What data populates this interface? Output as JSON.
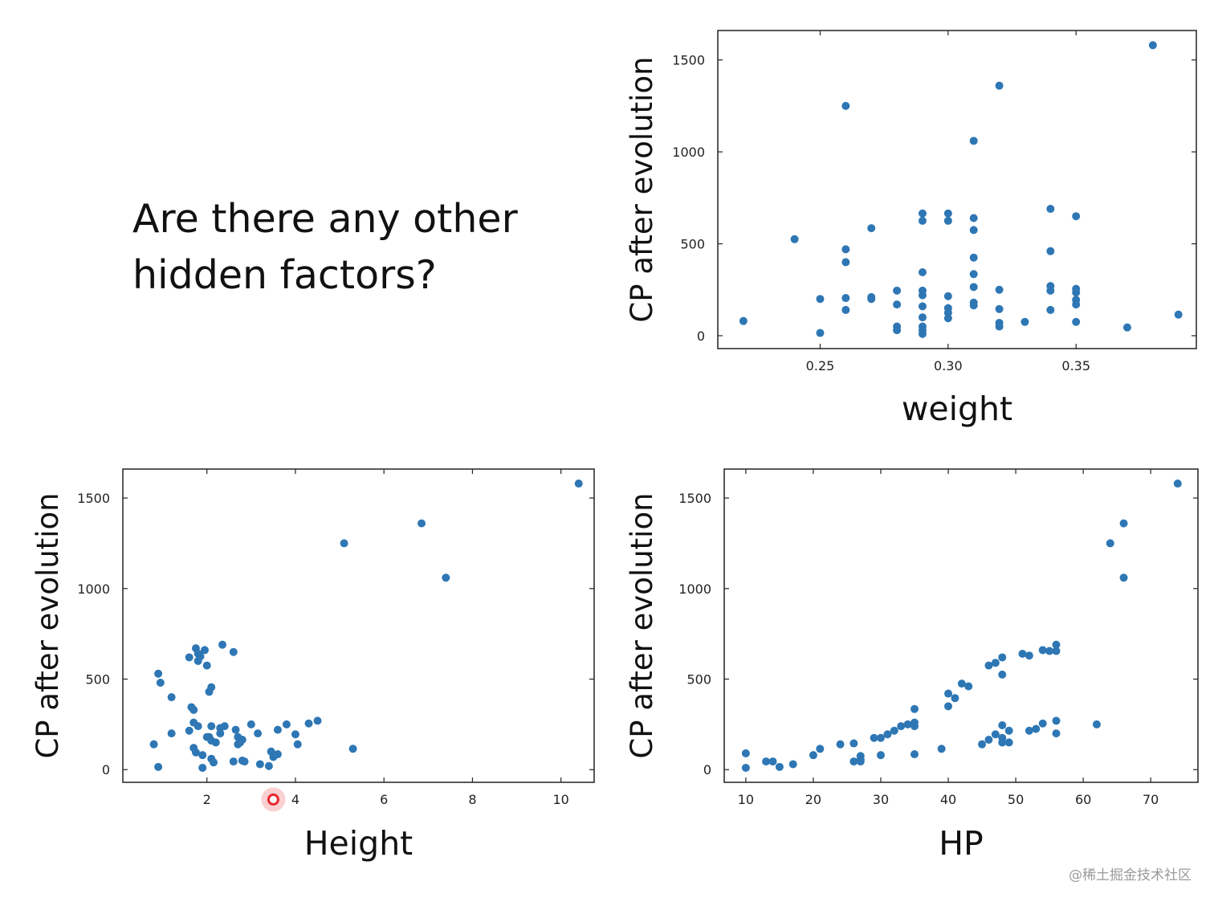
{
  "slide": {
    "heading_line1": "Are there any other",
    "heading_line2": "hidden factors?",
    "watermark": "@稀土掘金技术社区"
  },
  "colors": {
    "point": "#2e77b4",
    "highlight": "#e8282e",
    "axis": "#222222"
  },
  "chart_data": [
    {
      "id": "weight",
      "type": "scatter",
      "xlabel": "weight",
      "ylabel": "CP after evolution",
      "xlim": [
        0.21,
        0.397
      ],
      "ylim": [
        -70,
        1660
      ],
      "xticks": [
        {
          "value": 0.25,
          "label": "0.25"
        },
        {
          "value": 0.3,
          "label": "0.30"
        },
        {
          "value": 0.35,
          "label": "0.35"
        }
      ],
      "yticks": [
        {
          "value": 0,
          "label": "0"
        },
        {
          "value": 500,
          "label": "500"
        },
        {
          "value": 1000,
          "label": "1000"
        },
        {
          "value": 1500,
          "label": "1500"
        }
      ],
      "points": [
        [
          0.22,
          80
        ],
        [
          0.24,
          525
        ],
        [
          0.25,
          200
        ],
        [
          0.25,
          15
        ],
        [
          0.26,
          1250
        ],
        [
          0.26,
          470
        ],
        [
          0.26,
          400
        ],
        [
          0.26,
          205
        ],
        [
          0.26,
          140
        ],
        [
          0.27,
          585
        ],
        [
          0.27,
          210
        ],
        [
          0.27,
          200
        ],
        [
          0.28,
          245
        ],
        [
          0.28,
          170
        ],
        [
          0.28,
          50
        ],
        [
          0.28,
          30
        ],
        [
          0.29,
          665
        ],
        [
          0.29,
          625
        ],
        [
          0.29,
          345
        ],
        [
          0.29,
          245
        ],
        [
          0.29,
          220
        ],
        [
          0.29,
          160
        ],
        [
          0.29,
          100
        ],
        [
          0.29,
          50
        ],
        [
          0.29,
          30
        ],
        [
          0.29,
          10
        ],
        [
          0.3,
          665
        ],
        [
          0.3,
          625
        ],
        [
          0.3,
          215
        ],
        [
          0.3,
          150
        ],
        [
          0.3,
          125
        ],
        [
          0.3,
          95
        ],
        [
          0.31,
          1060
        ],
        [
          0.31,
          640
        ],
        [
          0.31,
          575
        ],
        [
          0.31,
          425
        ],
        [
          0.31,
          335
        ],
        [
          0.31,
          265
        ],
        [
          0.31,
          180
        ],
        [
          0.31,
          165
        ],
        [
          0.32,
          1360
        ],
        [
          0.32,
          250
        ],
        [
          0.32,
          145
        ],
        [
          0.32,
          70
        ],
        [
          0.32,
          50
        ],
        [
          0.33,
          75
        ],
        [
          0.34,
          690
        ],
        [
          0.34,
          460
        ],
        [
          0.34,
          270
        ],
        [
          0.34,
          245
        ],
        [
          0.34,
          140
        ],
        [
          0.35,
          650
        ],
        [
          0.35,
          255
        ],
        [
          0.35,
          235
        ],
        [
          0.35,
          195
        ],
        [
          0.35,
          170
        ],
        [
          0.35,
          75
        ],
        [
          0.37,
          45
        ],
        [
          0.38,
          1580
        ],
        [
          0.39,
          115
        ]
      ]
    },
    {
      "id": "height",
      "type": "scatter",
      "xlabel": "Height",
      "ylabel": "CP after evolution",
      "xlim": [
        0.1,
        10.75
      ],
      "ylim": [
        -70,
        1660
      ],
      "xticks": [
        {
          "value": 2,
          "label": "2"
        },
        {
          "value": 4,
          "label": "4"
        },
        {
          "value": 6,
          "label": "6"
        },
        {
          "value": 8,
          "label": "8"
        },
        {
          "value": 10,
          "label": "10"
        }
      ],
      "yticks": [
        {
          "value": 0,
          "label": "0"
        },
        {
          "value": 500,
          "label": "500"
        },
        {
          "value": 1000,
          "label": "1000"
        },
        {
          "value": 1500,
          "label": "1500"
        }
      ],
      "highlight": {
        "x": 3.5,
        "y": -165
      },
      "points": [
        [
          0.8,
          140
        ],
        [
          0.9,
          530
        ],
        [
          0.95,
          480
        ],
        [
          0.9,
          15
        ],
        [
          1.2,
          400
        ],
        [
          1.2,
          200
        ],
        [
          1.6,
          620
        ],
        [
          1.6,
          215
        ],
        [
          1.65,
          345
        ],
        [
          1.7,
          330
        ],
        [
          1.7,
          260
        ],
        [
          1.7,
          120
        ],
        [
          1.75,
          95
        ],
        [
          1.75,
          670
        ],
        [
          1.8,
          600
        ],
        [
          1.8,
          640
        ],
        [
          1.8,
          240
        ],
        [
          1.85,
          625
        ],
        [
          1.9,
          80
        ],
        [
          1.9,
          10
        ],
        [
          1.95,
          660
        ],
        [
          2.0,
          180
        ],
        [
          2.0,
          575
        ],
        [
          2.05,
          180
        ],
        [
          2.05,
          430
        ],
        [
          2.1,
          455
        ],
        [
          2.1,
          240
        ],
        [
          2.1,
          60
        ],
        [
          2.1,
          160
        ],
        [
          2.15,
          40
        ],
        [
          2.2,
          150
        ],
        [
          2.3,
          230
        ],
        [
          2.3,
          200
        ],
        [
          2.35,
          690
        ],
        [
          2.4,
          240
        ],
        [
          2.6,
          650
        ],
        [
          2.6,
          45
        ],
        [
          2.65,
          220
        ],
        [
          2.7,
          180
        ],
        [
          2.7,
          140
        ],
        [
          2.75,
          150
        ],
        [
          2.8,
          50
        ],
        [
          2.8,
          165
        ],
        [
          2.85,
          45
        ],
        [
          3.0,
          250
        ],
        [
          3.15,
          200
        ],
        [
          3.2,
          30
        ],
        [
          3.4,
          20
        ],
        [
          3.45,
          100
        ],
        [
          3.5,
          70
        ],
        [
          3.6,
          220
        ],
        [
          3.6,
          85
        ],
        [
          3.8,
          250
        ],
        [
          4.0,
          195
        ],
        [
          4.05,
          140
        ],
        [
          4.3,
          255
        ],
        [
          4.5,
          270
        ],
        [
          5.1,
          1250
        ],
        [
          5.3,
          115
        ],
        [
          6.85,
          1360
        ],
        [
          7.4,
          1060
        ],
        [
          10.4,
          1580
        ]
      ]
    },
    {
      "id": "hp",
      "type": "scatter",
      "xlabel": "HP",
      "ylabel": "CP after evolution",
      "xlim": [
        6.8,
        77
      ],
      "ylim": [
        -70,
        1660
      ],
      "xticks": [
        {
          "value": 10,
          "label": "10"
        },
        {
          "value": 20,
          "label": "20"
        },
        {
          "value": 30,
          "label": "30"
        },
        {
          "value": 40,
          "label": "40"
        },
        {
          "value": 50,
          "label": "50"
        },
        {
          "value": 60,
          "label": "60"
        },
        {
          "value": 70,
          "label": "70"
        }
      ],
      "yticks": [
        {
          "value": 0,
          "label": "0"
        },
        {
          "value": 500,
          "label": "500"
        },
        {
          "value": 1000,
          "label": "1000"
        },
        {
          "value": 1500,
          "label": "1500"
        }
      ],
      "points": [
        [
          10,
          90
        ],
        [
          10,
          10
        ],
        [
          13,
          45
        ],
        [
          14,
          45
        ],
        [
          15,
          15
        ],
        [
          17,
          30
        ],
        [
          20,
          80
        ],
        [
          21,
          115
        ],
        [
          24,
          140
        ],
        [
          26,
          145
        ],
        [
          26,
          45
        ],
        [
          27,
          55
        ],
        [
          27,
          75
        ],
        [
          27,
          45
        ],
        [
          29,
          175
        ],
        [
          30,
          175
        ],
        [
          30,
          80
        ],
        [
          31,
          195
        ],
        [
          32,
          215
        ],
        [
          33,
          240
        ],
        [
          34,
          250
        ],
        [
          35,
          260
        ],
        [
          35,
          240
        ],
        [
          35,
          335
        ],
        [
          35,
          85
        ],
        [
          39,
          115
        ],
        [
          40,
          420
        ],
        [
          40,
          350
        ],
        [
          41,
          395
        ],
        [
          42,
          475
        ],
        [
          43,
          460
        ],
        [
          45,
          140
        ],
        [
          46,
          575
        ],
        [
          46,
          165
        ],
        [
          47,
          590
        ],
        [
          47,
          195
        ],
        [
          48,
          620
        ],
        [
          48,
          525
        ],
        [
          48,
          245
        ],
        [
          48,
          175
        ],
        [
          48,
          150
        ],
        [
          49,
          215
        ],
        [
          49,
          150
        ],
        [
          51,
          640
        ],
        [
          52,
          630
        ],
        [
          52,
          215
        ],
        [
          53,
          225
        ],
        [
          54,
          660
        ],
        [
          54,
          255
        ],
        [
          55,
          655
        ],
        [
          56,
          690
        ],
        [
          56,
          655
        ],
        [
          56,
          270
        ],
        [
          56,
          200
        ],
        [
          62,
          250
        ],
        [
          64,
          1250
        ],
        [
          66,
          1360
        ],
        [
          66,
          1060
        ],
        [
          74,
          1580
        ]
      ]
    }
  ]
}
